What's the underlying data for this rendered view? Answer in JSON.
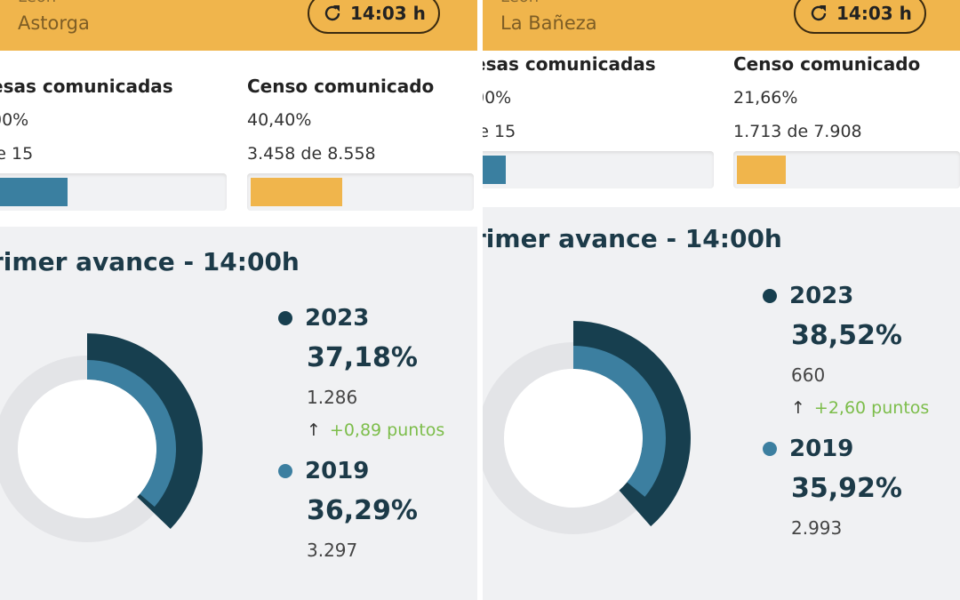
{
  "panels": [
    {
      "region": "León",
      "city": "Astorga",
      "time": "14:03 h",
      "mesas": {
        "title": "esas comunicadas",
        "pct": "00%",
        "count": "le 15",
        "fill": 0.31
      },
      "censo": {
        "title": "Censo comunicado",
        "pct": "40,40%",
        "count": "3.458 de 8.558",
        "fill": 0.404
      },
      "advance_title": "rimer avance - 14:00h",
      "y2023": {
        "year": "2023",
        "pct": "37,18%",
        "votes": "1.286",
        "diff": "+0,89 puntos",
        "value": 37.18
      },
      "y2019": {
        "year": "2019",
        "pct": "36,29%",
        "votes": "3.297",
        "value": 36.29
      }
    },
    {
      "region": "León",
      "city": "La Bañeza",
      "time": "14:03 h",
      "mesas": {
        "title": "esas comunicadas",
        "pct": "00%",
        "count": "le 15",
        "fill": 0.12
      },
      "censo": {
        "title": "Censo comunicado",
        "pct": "21,66%",
        "count": "1.713 de 7.908",
        "fill": 0.2166
      },
      "advance_title": "rimer avance - 14:00h",
      "y2023": {
        "year": "2023",
        "pct": "38,52%",
        "votes": "660",
        "diff": "+2,60 puntos",
        "value": 38.52
      },
      "y2019": {
        "year": "2019",
        "pct": "35,92%",
        "votes": "2.993",
        "value": 35.92
      }
    }
  ],
  "colors": {
    "header": "#f0b54c",
    "mesas_bar": "#3a7fa0",
    "censo_bar": "#f0b54c",
    "series_2023": "#173f4f",
    "series_2019": "#3c7fa0",
    "track": "#e3e4e7",
    "up": "#7cbd4a"
  },
  "icons": {
    "refresh": "refresh-icon",
    "up": "arrow-up-icon"
  }
}
